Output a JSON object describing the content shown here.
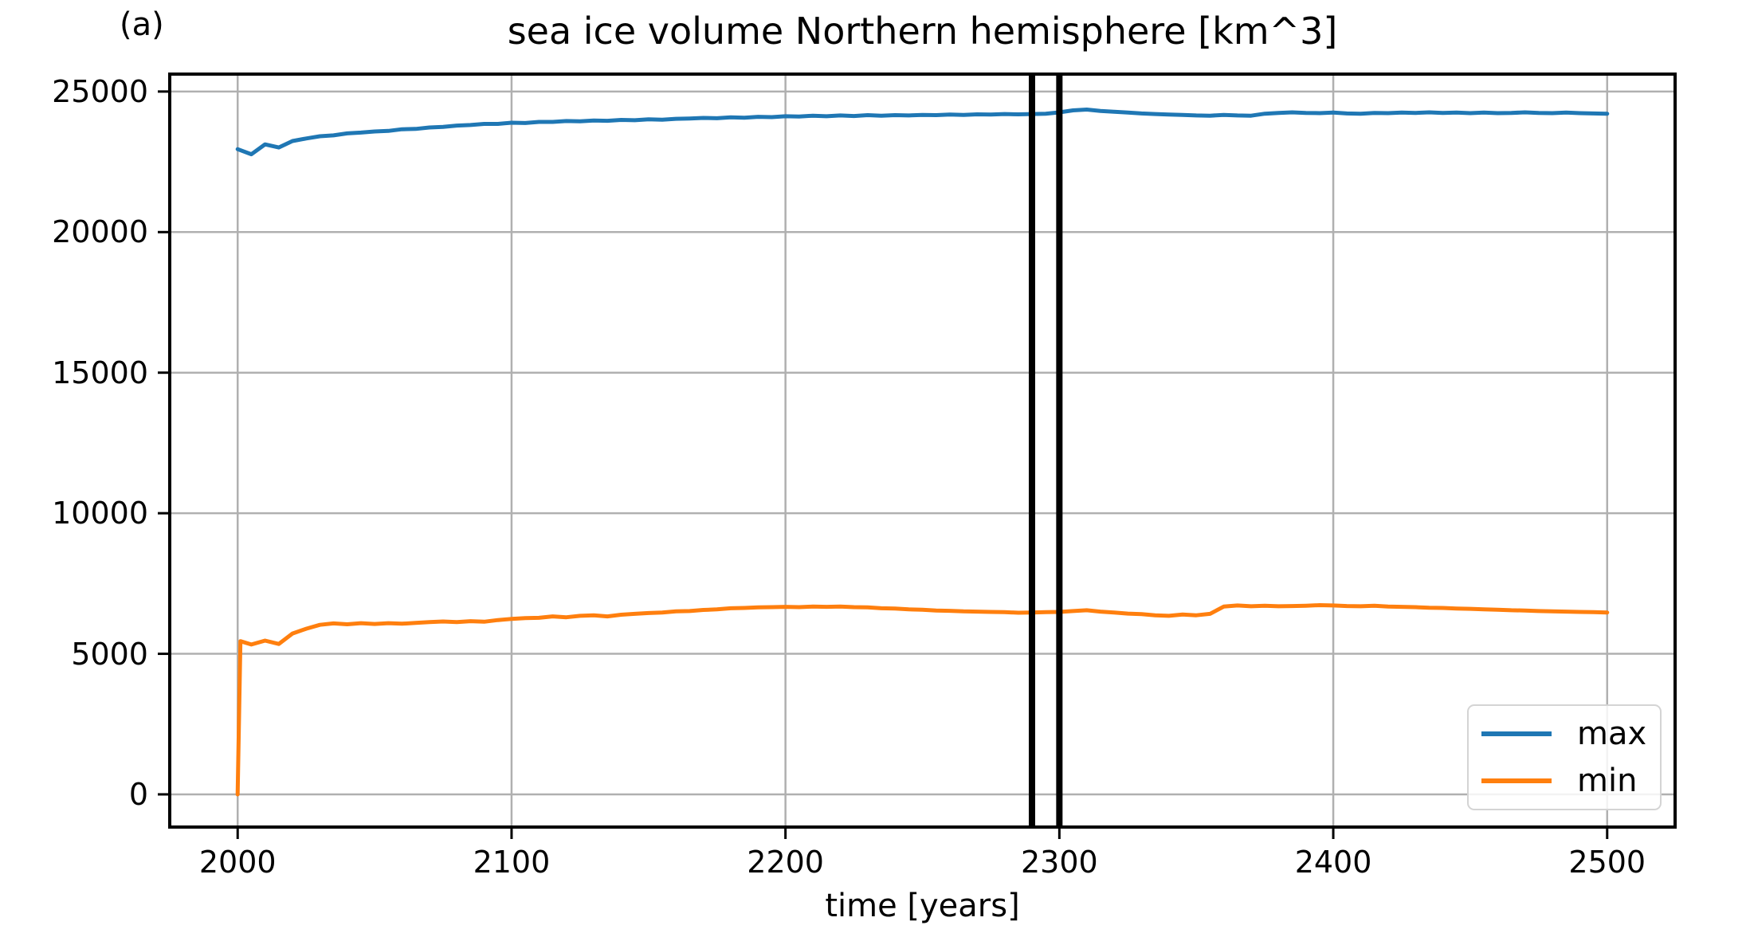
{
  "figure_label": "(a)",
  "chart_data": {
    "type": "line",
    "title": "sea ice volume Northern hemisphere [km^3]",
    "xlabel": "time [years]",
    "ylabel": "",
    "xlim": [
      1975.2,
      2524.8
    ],
    "ylim": [
      -1163,
      25620
    ],
    "x_ticks": [
      2000,
      2100,
      2200,
      2300,
      2400,
      2500
    ],
    "y_ticks": [
      0,
      5000,
      10000,
      15000,
      20000,
      25000
    ],
    "grid": true,
    "grid_color": "#b0b0b0",
    "spine_color": "#000000",
    "legend_position": "lower right",
    "vlines": {
      "x": [
        2290,
        2300
      ],
      "color": "#000000"
    },
    "series": [
      {
        "name": "max",
        "color": "#1f77b4",
        "x": [
          2000,
          2005,
          2010,
          2015,
          2020,
          2025,
          2030,
          2035,
          2040,
          2045,
          2050,
          2055,
          2060,
          2065,
          2070,
          2075,
          2080,
          2085,
          2090,
          2095,
          2100,
          2105,
          2110,
          2115,
          2120,
          2125,
          2130,
          2135,
          2140,
          2145,
          2150,
          2155,
          2160,
          2165,
          2170,
          2175,
          2180,
          2185,
          2190,
          2195,
          2200,
          2205,
          2210,
          2215,
          2220,
          2225,
          2230,
          2235,
          2240,
          2245,
          2250,
          2255,
          2260,
          2265,
          2270,
          2275,
          2280,
          2285,
          2290,
          2295,
          2300,
          2305,
          2310,
          2315,
          2320,
          2325,
          2330,
          2335,
          2340,
          2345,
          2350,
          2355,
          2360,
          2365,
          2370,
          2375,
          2380,
          2385,
          2390,
          2395,
          2400,
          2405,
          2410,
          2415,
          2420,
          2425,
          2430,
          2435,
          2440,
          2445,
          2450,
          2455,
          2460,
          2465,
          2470,
          2475,
          2480,
          2485,
          2490,
          2495,
          2500
        ],
        "y": [
          22950,
          22770,
          23120,
          23010,
          23240,
          23330,
          23410,
          23440,
          23510,
          23540,
          23580,
          23600,
          23660,
          23670,
          23720,
          23740,
          23790,
          23810,
          23850,
          23850,
          23890,
          23880,
          23920,
          23920,
          23950,
          23940,
          23970,
          23960,
          23990,
          23980,
          24010,
          24000,
          24030,
          24040,
          24060,
          24050,
          24080,
          24070,
          24100,
          24090,
          24120,
          24110,
          24140,
          24120,
          24150,
          24130,
          24160,
          24140,
          24160,
          24150,
          24170,
          24160,
          24180,
          24170,
          24190,
          24180,
          24200,
          24190,
          24200,
          24210,
          24260,
          24330,
          24360,
          24310,
          24280,
          24250,
          24220,
          24200,
          24180,
          24170,
          24150,
          24140,
          24170,
          24150,
          24140,
          24210,
          24240,
          24260,
          24240,
          24230,
          24250,
          24220,
          24210,
          24240,
          24230,
          24250,
          24240,
          24260,
          24240,
          24250,
          24230,
          24250,
          24230,
          24240,
          24260,
          24240,
          24230,
          24250,
          24230,
          24220,
          24210
        ]
      },
      {
        "name": "min",
        "color": "#ff7f0e",
        "x": [
          2000,
          2001,
          2005,
          2010,
          2015,
          2020,
          2025,
          2030,
          2035,
          2040,
          2045,
          2050,
          2055,
          2060,
          2065,
          2070,
          2075,
          2080,
          2085,
          2090,
          2095,
          2100,
          2105,
          2110,
          2115,
          2120,
          2125,
          2130,
          2135,
          2140,
          2145,
          2150,
          2155,
          2160,
          2165,
          2170,
          2175,
          2180,
          2185,
          2190,
          2195,
          2200,
          2205,
          2210,
          2215,
          2220,
          2225,
          2230,
          2235,
          2240,
          2245,
          2250,
          2255,
          2260,
          2265,
          2270,
          2275,
          2280,
          2285,
          2290,
          2295,
          2300,
          2305,
          2310,
          2315,
          2320,
          2325,
          2330,
          2335,
          2340,
          2345,
          2350,
          2355,
          2360,
          2365,
          2370,
          2375,
          2380,
          2385,
          2390,
          2395,
          2400,
          2405,
          2410,
          2415,
          2420,
          2425,
          2430,
          2435,
          2440,
          2445,
          2450,
          2455,
          2460,
          2465,
          2470,
          2475,
          2480,
          2485,
          2490,
          2495,
          2500
        ],
        "y": [
          0,
          5450,
          5330,
          5470,
          5350,
          5720,
          5890,
          6030,
          6080,
          6050,
          6090,
          6060,
          6090,
          6070,
          6100,
          6130,
          6150,
          6130,
          6160,
          6140,
          6200,
          6240,
          6270,
          6280,
          6330,
          6300,
          6350,
          6370,
          6330,
          6390,
          6420,
          6450,
          6470,
          6510,
          6520,
          6560,
          6580,
          6620,
          6630,
          6650,
          6660,
          6670,
          6660,
          6680,
          6670,
          6680,
          6660,
          6650,
          6620,
          6610,
          6580,
          6570,
          6540,
          6530,
          6510,
          6500,
          6490,
          6480,
          6460,
          6470,
          6480,
          6490,
          6520,
          6550,
          6500,
          6470,
          6430,
          6410,
          6370,
          6350,
          6400,
          6370,
          6420,
          6680,
          6720,
          6690,
          6710,
          6690,
          6700,
          6710,
          6730,
          6720,
          6700,
          6690,
          6710,
          6680,
          6670,
          6660,
          6640,
          6630,
          6610,
          6600,
          6580,
          6570,
          6550,
          6540,
          6520,
          6510,
          6500,
          6490,
          6480,
          6470
        ]
      }
    ]
  }
}
